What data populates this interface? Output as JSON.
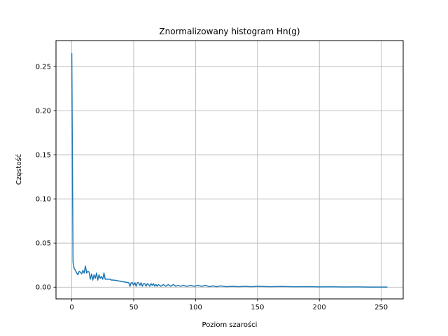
{
  "chart_data": {
    "type": "line",
    "title": "Znormalizowany histogram Hn(g)",
    "xlabel": "Poziom szarości",
    "ylabel": "Częstość",
    "xlim": [
      -12.75,
      267.75
    ],
    "ylim": [
      -0.0133,
      0.2793
    ],
    "xticks": [
      0,
      50,
      100,
      150,
      200,
      250
    ],
    "yticks": [
      0.0,
      0.05,
      0.1,
      0.15,
      0.2,
      0.25
    ],
    "xtick_labels": [
      "0",
      "50",
      "100",
      "150",
      "200",
      "250"
    ],
    "ytick_labels": [
      "0.00",
      "0.05",
      "0.10",
      "0.15",
      "0.20",
      "0.25"
    ],
    "grid": true,
    "series": [
      {
        "color": "#1f77b4",
        "x": [
          0,
          1,
          2,
          3,
          4,
          5,
          6,
          7,
          8,
          9,
          10,
          11,
          12,
          13,
          14,
          15,
          16,
          17,
          18,
          19,
          20,
          21,
          22,
          23,
          24,
          25,
          26,
          27,
          28,
          29,
          30,
          31,
          32,
          34,
          36,
          38,
          40,
          42,
          44,
          46,
          47,
          48,
          49,
          50,
          51,
          52,
          53,
          54,
          55,
          56,
          57,
          58,
          59,
          60,
          61,
          62,
          63,
          64,
          65,
          66,
          67,
          68,
          69,
          70,
          72,
          74,
          76,
          78,
          80,
          82,
          84,
          86,
          88,
          90,
          93,
          96,
          99,
          102,
          105,
          108,
          111,
          114,
          117,
          120,
          125,
          130,
          135,
          140,
          145,
          150,
          160,
          170,
          180,
          190,
          200,
          210,
          220,
          230,
          240,
          250,
          255
        ],
        "values": [
          0.265,
          0.028,
          0.021,
          0.019,
          0.016,
          0.014,
          0.018,
          0.017,
          0.015,
          0.019,
          0.016,
          0.024,
          0.016,
          0.018,
          0.017,
          0.009,
          0.015,
          0.008,
          0.014,
          0.01,
          0.016,
          0.008,
          0.014,
          0.01,
          0.012,
          0.009,
          0.016,
          0.009,
          0.009,
          0.009,
          0.009,
          0.009,
          0.008,
          0.008,
          0.0075,
          0.007,
          0.0065,
          0.006,
          0.0055,
          0.005,
          0.001,
          0.005,
          0.005,
          0.002,
          0.005,
          0.001,
          0.005,
          0.005,
          0.002,
          0.005,
          0.001,
          0.004,
          0.004,
          0.001,
          0.004,
          0.003,
          0.001,
          0.004,
          0.002,
          0.004,
          0.001,
          0.003,
          0.001,
          0.003,
          0.001,
          0.003,
          0.001,
          0.003,
          0.001,
          0.003,
          0.001,
          0.002,
          0.001,
          0.002,
          0.001,
          0.002,
          0.001,
          0.002,
          0.001,
          0.002,
          0.0005,
          0.0015,
          0.0005,
          0.0015,
          0.0005,
          0.001,
          0.0005,
          0.001,
          0.0005,
          0.001,
          0.0005,
          0.0008,
          0.0004,
          0.0006,
          0.0003,
          0.0004,
          0.0002,
          0.0003,
          0.0001,
          0.0001,
          0.0001
        ]
      }
    ]
  }
}
